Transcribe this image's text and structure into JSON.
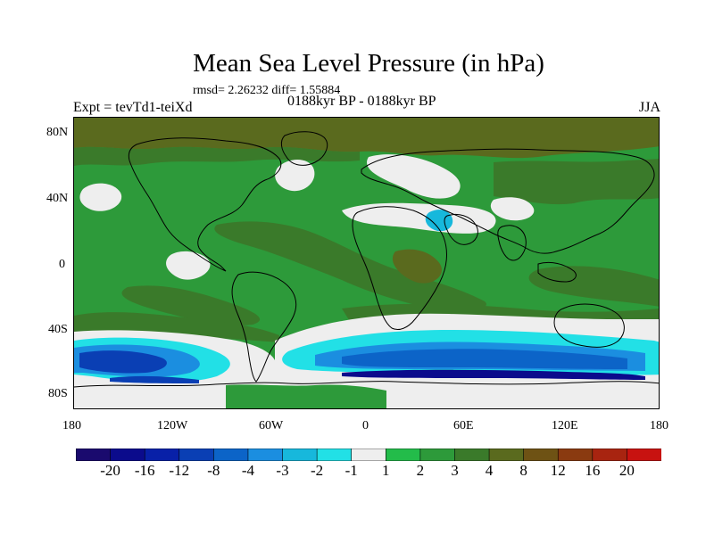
{
  "figure": {
    "title": "Mean Sea Level Pressure (in hPa)",
    "stats": "rmsd= 2.26232 diff= 1.55884",
    "experiment": "Expt = tevTd1-teiXd",
    "period": "0188kyr BP - 0188kyr BP",
    "season": "JJA"
  },
  "map": {
    "lat_labels": [
      "80N",
      "40N",
      "0",
      "40S",
      "80S"
    ],
    "lon_labels": [
      "180",
      "120W",
      "60W",
      "0",
      "60E",
      "120E",
      "180"
    ]
  },
  "colorbar": {
    "labels": [
      "-20",
      "-16",
      "-12",
      "-8",
      "-4",
      "-3",
      "-2",
      "-1",
      "1",
      "2",
      "3",
      "4",
      "8",
      "12",
      "16",
      "20"
    ],
    "colors": [
      "#1a0a6e",
      "#0b0b8c",
      "#0820a8",
      "#0a3fb4",
      "#0c64c8",
      "#1b8ee0",
      "#17b8dc",
      "#22e0e6",
      "#eeeeee",
      "#23bc4a",
      "#2d9a3a",
      "#3a7a2a",
      "#5a6a1e",
      "#6e5214",
      "#8a3a10",
      "#a82410",
      "#c81210"
    ]
  },
  "palette": {
    "land_outline": "#000000",
    "background": "#2d9a3a"
  }
}
